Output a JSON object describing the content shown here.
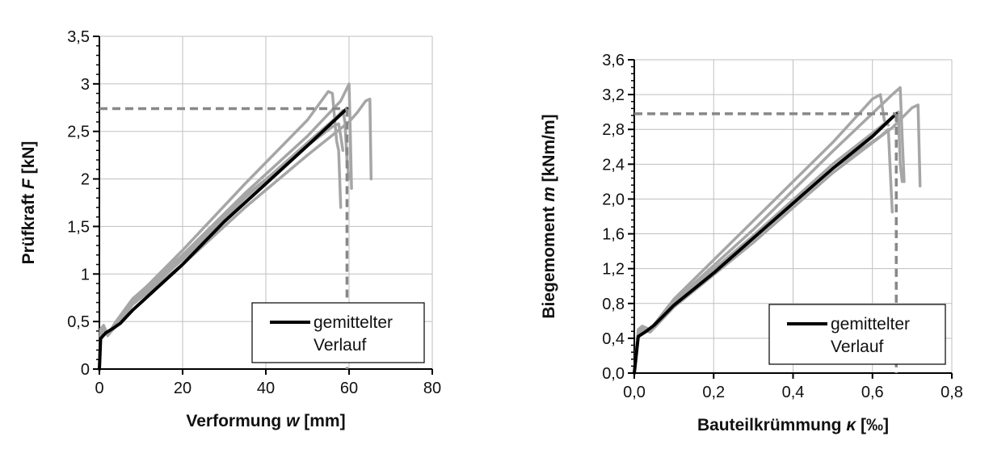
{
  "chart_data": [
    {
      "type": "line",
      "xlabel": "Verformung w [mm]",
      "xlabel_parts": [
        "Verformung ",
        "w",
        " [mm]"
      ],
      "ylabel": "Prüfkraft F [kN]",
      "ylabel_parts": [
        "Prüfkraft ",
        "F",
        " [kN]"
      ],
      "xlim": [
        0,
        80
      ],
      "ylim": [
        0,
        3.5
      ],
      "xticks": [
        0,
        20,
        40,
        60,
        80
      ],
      "xtick_labels": [
        "0",
        "20",
        "40",
        "60",
        "80"
      ],
      "yticks": [
        0,
        0.5,
        1,
        1.5,
        2,
        2.5,
        3,
        3.5
      ],
      "ytick_labels": [
        "0",
        "0,5",
        "1",
        "1,5",
        "2",
        "2,5",
        "3",
        "3,5"
      ],
      "grid": true,
      "legend": {
        "entries": [
          "gemittelter",
          "Verlauf"
        ],
        "placement": "bottom-right"
      },
      "reference_lines": {
        "x": 59.5,
        "y": 2.74,
        "color": "#888888"
      },
      "mean_color": "#000000",
      "test_color": "#a6a6a6",
      "series": [
        {
          "name": "gemittelter Verlauf",
          "role": "mean",
          "x": [
            0,
            0.3,
            1.5,
            3,
            5,
            8,
            10,
            20,
            30,
            40,
            50,
            59.5
          ],
          "y": [
            0,
            0.32,
            0.38,
            0.42,
            0.48,
            0.62,
            0.7,
            1.1,
            1.55,
            1.95,
            2.35,
            2.74
          ]
        },
        {
          "role": "test",
          "x": [
            0,
            0.3,
            1,
            2,
            4,
            8,
            20,
            35,
            50,
            55,
            56,
            57,
            57.5,
            58
          ],
          "y": [
            0,
            0.4,
            0.42,
            0.38,
            0.48,
            0.72,
            1.25,
            1.95,
            2.62,
            2.92,
            2.9,
            2.4,
            2.3,
            1.7
          ]
        },
        {
          "role": "test",
          "x": [
            0,
            0.3,
            1,
            2,
            4,
            8,
            20,
            35,
            50,
            58,
            60,
            60.3,
            60.6
          ],
          "y": [
            0,
            0.42,
            0.46,
            0.36,
            0.5,
            0.74,
            1.2,
            1.85,
            2.45,
            2.82,
            3.0,
            2.5,
            1.9
          ]
        },
        {
          "role": "test",
          "x": [
            0,
            0.3,
            1,
            2,
            4,
            8,
            20,
            35,
            50,
            57,
            58.5,
            59,
            59.5,
            60
          ],
          "y": [
            0,
            0.38,
            0.44,
            0.35,
            0.46,
            0.7,
            1.15,
            1.8,
            2.38,
            2.65,
            2.72,
            2.6,
            2.2,
            2.0
          ]
        },
        {
          "role": "test",
          "x": [
            0,
            0.3,
            1,
            2,
            4,
            8,
            20,
            35,
            50,
            60,
            62,
            64,
            65,
            65.3
          ],
          "y": [
            0,
            0.36,
            0.42,
            0.36,
            0.45,
            0.68,
            1.1,
            1.7,
            2.25,
            2.6,
            2.7,
            2.82,
            2.84,
            2.0
          ]
        },
        {
          "role": "test",
          "x": [
            0,
            0.3,
            1,
            2,
            4,
            8,
            20,
            35,
            50,
            56,
            57.5,
            58,
            58.5
          ],
          "y": [
            0,
            0.4,
            0.44,
            0.37,
            0.47,
            0.7,
            1.18,
            1.82,
            2.35,
            2.55,
            2.58,
            2.45,
            2.3
          ]
        }
      ]
    },
    {
      "type": "line",
      "xlabel": "Bauteilkrümmung κ [‰]",
      "xlabel_parts": [
        "Bauteilkrümmung ",
        "κ",
        " [‰]"
      ],
      "ylabel": "Biegemoment m [kNm/m]",
      "ylabel_parts": [
        "Biegemoment ",
        "m",
        " [kNm/m]"
      ],
      "xlim": [
        0,
        0.8
      ],
      "ylim": [
        0,
        3.6
      ],
      "xticks": [
        0,
        0.2,
        0.4,
        0.6,
        0.8
      ],
      "xtick_labels": [
        "0,0",
        "0,2",
        "0,4",
        "0,6",
        "0,8"
      ],
      "yticks": [
        0,
        0.4,
        0.8,
        1.2,
        1.6,
        2.0,
        2.4,
        2.8,
        3.2,
        3.6
      ],
      "ytick_labels": [
        "0,0",
        "0,4",
        "0,8",
        "1,2",
        "1,6",
        "2,0",
        "2,4",
        "2,8",
        "3,2",
        "3,6"
      ],
      "grid": true,
      "legend": {
        "entries": [
          "gemittelter",
          "Verlauf"
        ],
        "placement": "bottom-right"
      },
      "reference_lines": {
        "x": 0.66,
        "y": 2.98,
        "color": "#888888"
      },
      "mean_color": "#000000",
      "test_color": "#a6a6a6",
      "series": [
        {
          "name": "gemittelter Verlauf",
          "role": "mean",
          "x": [
            0,
            0.01,
            0.03,
            0.05,
            0.1,
            0.2,
            0.3,
            0.4,
            0.5,
            0.6,
            0.66
          ],
          "y": [
            0,
            0.42,
            0.48,
            0.55,
            0.78,
            1.15,
            1.55,
            1.95,
            2.35,
            2.72,
            2.98
          ]
        },
        {
          "role": "test",
          "x": [
            0,
            0.01,
            0.02,
            0.04,
            0.1,
            0.3,
            0.5,
            0.6,
            0.62,
            0.63,
            0.64
          ],
          "y": [
            0,
            0.48,
            0.52,
            0.5,
            0.85,
            1.75,
            2.65,
            3.15,
            3.2,
            2.9,
            2.85
          ]
        },
        {
          "role": "test",
          "x": [
            0,
            0.01,
            0.02,
            0.04,
            0.1,
            0.3,
            0.5,
            0.65,
            0.67,
            0.675,
            0.68
          ],
          "y": [
            0,
            0.5,
            0.54,
            0.5,
            0.82,
            1.65,
            2.55,
            3.2,
            3.28,
            2.7,
            2.2
          ]
        },
        {
          "role": "test",
          "x": [
            0,
            0.01,
            0.02,
            0.04,
            0.1,
            0.3,
            0.5,
            0.62,
            0.64,
            0.645,
            0.65
          ],
          "y": [
            0,
            0.45,
            0.5,
            0.48,
            0.78,
            1.55,
            2.35,
            2.72,
            2.8,
            2.3,
            1.85
          ]
        },
        {
          "role": "test",
          "x": [
            0,
            0.01,
            0.02,
            0.04,
            0.1,
            0.3,
            0.5,
            0.65,
            0.7,
            0.715,
            0.72
          ],
          "y": [
            0,
            0.44,
            0.5,
            0.47,
            0.76,
            1.5,
            2.3,
            2.82,
            3.05,
            3.08,
            2.15
          ]
        },
        {
          "role": "test",
          "x": [
            0,
            0.01,
            0.02,
            0.04,
            0.1,
            0.3,
            0.5,
            0.64,
            0.665,
            0.67,
            0.675
          ],
          "y": [
            0,
            0.47,
            0.52,
            0.49,
            0.8,
            1.58,
            2.4,
            2.9,
            3.0,
            2.4,
            2.2
          ]
        }
      ]
    }
  ]
}
